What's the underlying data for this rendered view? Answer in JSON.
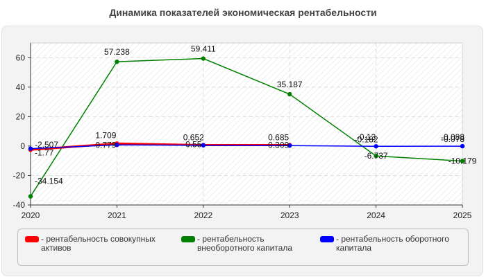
{
  "header": {
    "title": "Динамика показателей экономическая рентабельности"
  },
  "chart_data": {
    "type": "line",
    "title": "Динамика показателей экономическая рентабельности",
    "x": [
      "2020",
      "2021",
      "2022",
      "2023",
      "2024",
      "2025"
    ],
    "xlabel": "",
    "ylabel": "",
    "ylim": [
      -40,
      70
    ],
    "yticks": [
      "60",
      "40",
      "20",
      "0",
      "-20",
      "-40"
    ],
    "grid": true,
    "legend_position": "bottom",
    "series": [
      {
        "name": "- рентабельность совокупных активов",
        "color": "#ff0000",
        "values": [
          -2.507,
          1.709,
          0.652,
          0.685,
          null,
          null
        ],
        "labels": [
          "-2.507",
          "1.709",
          "0.652",
          "0.685",
          "",
          ""
        ]
      },
      {
        "name": "- рентабельность внеоборотного капитала",
        "color": "#008000",
        "values": [
          -34.154,
          57.238,
          59.411,
          35.187,
          -6.737,
          -10.179
        ],
        "labels": [
          "-34.154",
          "57.238",
          "59.411",
          "35.187",
          "-6.737",
          "-10.179"
        ]
      },
      {
        "name": "- рентабельность оборотного капитала",
        "color": "#0000ff",
        "values": [
          -1.77,
          0.779,
          0.55,
          0.309,
          -0.182,
          -0.078
        ],
        "labels": [
          "-1.77",
          "0.779",
          "0.55",
          "0.309",
          "-0.182",
          "-0.078"
        ]
      }
    ],
    "extra_labels": [
      {
        "x_index": 4,
        "text": "-0.13"
      },
      {
        "x_index": 5,
        "text": "-0.088"
      }
    ]
  }
}
